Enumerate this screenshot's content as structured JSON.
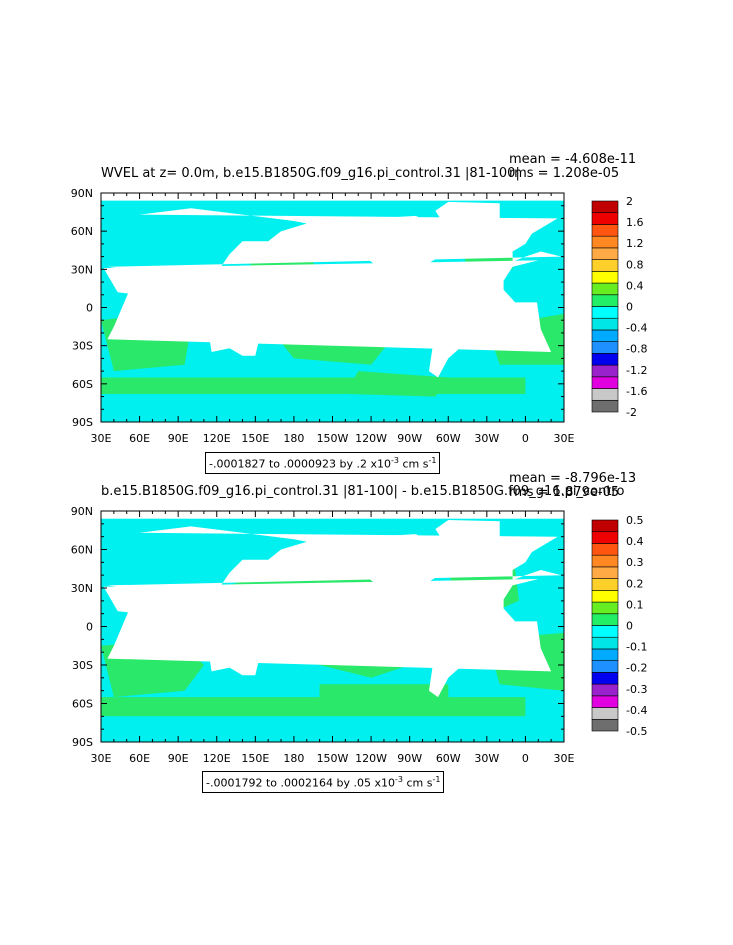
{
  "panels": [
    {
      "title_left": "WVEL at z=    0.0m, b.e15.B1850G.f09_g16.pi_control.31 |81-100|",
      "stat_mean": "mean = -4.608e-11",
      "stat_rms": "rms = 1.208e-05",
      "range_text": "-.0001827 to .0000923 by .2 x10",
      "range_exp": "-3",
      "range_unit": " cm s",
      "range_unit_exp": "-1"
    },
    {
      "title_left": "b.e15.B1850G.f09_g16.pi_control.31 |81-100| - b.e15.B1850G.f09_g16.pi_contro",
      "stat_mean": "mean = -8.796e-13",
      "stat_rms": "rms = 1.879e-05",
      "range_text": "-.0001792 to .0002164 by .05 x10",
      "range_exp": "-3",
      "range_unit": " cm s",
      "range_unit_exp": "-1"
    }
  ],
  "chart_data": [
    {
      "type": "heatmap",
      "title": "WVEL at z=    0.0m, b.e15.B1850G.f09_g16.pi_control.31 |81-100|",
      "xticks": [
        "30E",
        "60E",
        "90E",
        "120E",
        "150E",
        "180",
        "150W",
        "120W",
        "90W",
        "60W",
        "30W",
        "0",
        "30E"
      ],
      "yticks": [
        "90N",
        "60N",
        "30N",
        "0",
        "30S",
        "60S",
        "90S"
      ],
      "xlim": [
        30,
        390
      ],
      "ylim": [
        -90,
        90
      ],
      "colorbar_levels": [
        -2,
        -1.6,
        -1.2,
        -0.8,
        -0.4,
        0,
        0.4,
        0.8,
        1.2,
        1.6,
        2
      ],
      "colorbar_labels": [
        "2",
        "1.6",
        "1.2",
        "0.8",
        "0.4",
        "0",
        "-0.4",
        "-0.8",
        "-1.2",
        "-1.6",
        "-2"
      ],
      "colorbar_colors": [
        "#6e6e6e",
        "#c8c8c8",
        "#e000e0",
        "#9a22cc",
        "#0000ee",
        "#1e90ff",
        "#00aaff",
        "#00e6e6",
        "#00ffff",
        "#22ee66",
        "#66ee22",
        "#ffff00",
        "#ffd02a",
        "#ffaa44",
        "#ff8822",
        "#ff5511",
        "#ee0000",
        "#c00000"
      ],
      "mean": "-4.608e-11",
      "rms": "1.208e-05",
      "range": "-.0001827 to .0000923 by .2 x10-3 cm s-1"
    },
    {
      "type": "heatmap",
      "title": "b.e15.B1850G.f09_g16.pi_control.31 |81-100| - b.e15.B1850G.f09_g16.pi_contro",
      "xticks": [
        "30E",
        "60E",
        "90E",
        "120E",
        "150E",
        "180",
        "150W",
        "120W",
        "90W",
        "60W",
        "30W",
        "0",
        "30E"
      ],
      "yticks": [
        "90N",
        "60N",
        "30N",
        "0",
        "30S",
        "60S",
        "90S"
      ],
      "xlim": [
        30,
        390
      ],
      "ylim": [
        -90,
        90
      ],
      "colorbar_levels": [
        -0.5,
        -0.4,
        -0.3,
        -0.2,
        -0.1,
        0,
        0.1,
        0.2,
        0.3,
        0.4,
        0.5
      ],
      "colorbar_labels": [
        "0.5",
        "0.4",
        "0.3",
        "0.2",
        "0.1",
        "0",
        "-0.1",
        "-0.2",
        "-0.3",
        "-0.4",
        "-0.5"
      ],
      "colorbar_colors": [
        "#6e6e6e",
        "#c8c8c8",
        "#e000e0",
        "#9a22cc",
        "#0000ee",
        "#1e90ff",
        "#00aaff",
        "#00e6e6",
        "#00ffff",
        "#22ee66",
        "#66ee22",
        "#ffff00",
        "#ffd02a",
        "#ffaa44",
        "#ff8822",
        "#ff5511",
        "#ee0000",
        "#c00000"
      ],
      "mean": "-8.796e-13",
      "rms": "1.879e-05",
      "range": "-.0001792 to .0002164 by .05 x10-3 cm s-1"
    }
  ],
  "colors": {
    "ocean_positive": "#2ae86a",
    "ocean_negative": "#00f0f0",
    "land": "#ffffff"
  }
}
